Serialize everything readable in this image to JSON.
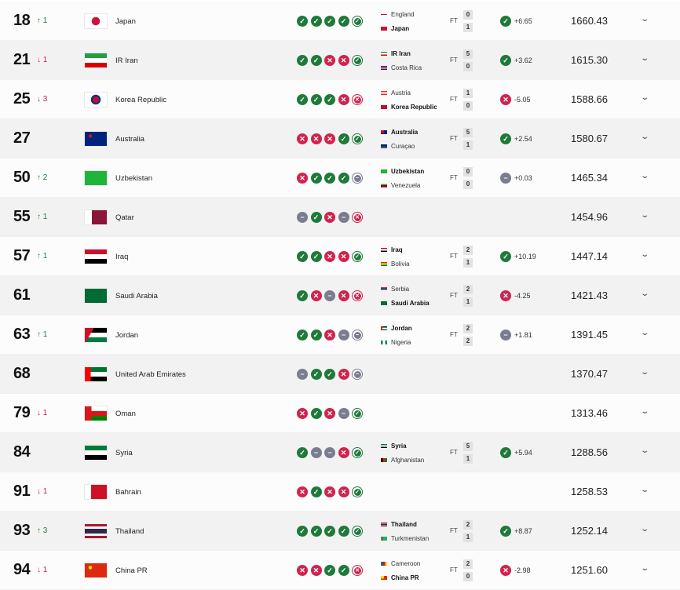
{
  "colors": {
    "win": "#1f7a3a",
    "loss": "#d0234e",
    "draw": "#7a7d8e",
    "row_alt": "#f2f2f2"
  },
  "icons": {
    "win": "check-icon",
    "loss": "x-icon",
    "draw": "minus-icon",
    "expand": "chevron-down-icon",
    "up": "arrow-up-icon",
    "down": "arrow-down-icon"
  },
  "rows": [
    {
      "rank": "18",
      "move": "↑ 1",
      "dir": "up",
      "flag": "jp",
      "name": "Japan",
      "form": [
        "W",
        "W",
        "W",
        "W",
        "W"
      ],
      "match": {
        "home": "England",
        "home_flag": "en",
        "away": "Japan",
        "away_flag": "jp",
        "bold": "away",
        "status": "FT",
        "home_score": "0",
        "away_score": "1",
        "result": "W",
        "delta": "+6.65"
      },
      "points": "1660.43"
    },
    {
      "rank": "21",
      "move": "↓ 1",
      "dir": "down",
      "flag": "ir",
      "name": "IR Iran",
      "form": [
        "W",
        "W",
        "L",
        "L",
        "W"
      ],
      "match": {
        "home": "IR Iran",
        "home_flag": "ir",
        "away": "Costa Rica",
        "away_flag": "cr",
        "bold": "home",
        "status": "FT",
        "home_score": "5",
        "away_score": "0",
        "result": "W",
        "delta": "+3.62"
      },
      "points": "1615.30"
    },
    {
      "rank": "25",
      "move": "↓ 3",
      "dir": "down",
      "flag": "kr",
      "name": "Korea Republic",
      "form": [
        "W",
        "W",
        "W",
        "L",
        "L"
      ],
      "match": {
        "home": "Austria",
        "home_flag": "at",
        "away": "Korea Republic",
        "away_flag": "kr",
        "bold": "away",
        "status": "FT",
        "home_score": "1",
        "away_score": "0",
        "result": "L",
        "delta": "-5.05"
      },
      "points": "1588.66"
    },
    {
      "rank": "27",
      "move": "",
      "dir": "",
      "flag": "au",
      "name": "Australia",
      "form": [
        "L",
        "L",
        "L",
        "W",
        "W"
      ],
      "match": {
        "home": "Australia",
        "home_flag": "au",
        "away": "Curaçao",
        "away_flag": "cw",
        "bold": "home",
        "status": "FT",
        "home_score": "5",
        "away_score": "1",
        "result": "W",
        "delta": "+2.54"
      },
      "points": "1580.67"
    },
    {
      "rank": "50",
      "move": "↑ 2",
      "dir": "up",
      "flag": "uz",
      "name": "Uzbekistan",
      "form": [
        "L",
        "W",
        "W",
        "W",
        "D"
      ],
      "match": {
        "home": "Uzbekistan",
        "home_flag": "uz",
        "away": "Venezuela",
        "away_flag": "ve",
        "bold": "home",
        "status": "FT",
        "home_score": "0",
        "away_score": "0",
        "result": "D",
        "delta": "+0.03"
      },
      "points": "1465.34"
    },
    {
      "rank": "55",
      "move": "↑ 1",
      "dir": "up",
      "flag": "qa",
      "name": "Qatar",
      "form": [
        "D",
        "W",
        "L",
        "D",
        "L"
      ],
      "match": null,
      "points": "1454.96"
    },
    {
      "rank": "57",
      "move": "↑ 1",
      "dir": "up",
      "flag": "iq",
      "name": "Iraq",
      "form": [
        "W",
        "W",
        "L",
        "L",
        "W"
      ],
      "match": {
        "home": "Iraq",
        "home_flag": "iq",
        "away": "Bolivia",
        "away_flag": "bo",
        "bold": "home",
        "status": "FT",
        "home_score": "2",
        "away_score": "1",
        "result": "W",
        "delta": "+10.19"
      },
      "points": "1447.14"
    },
    {
      "rank": "61",
      "move": "",
      "dir": "",
      "flag": "sa",
      "name": "Saudi Arabia",
      "form": [
        "W",
        "L",
        "D",
        "L",
        "L"
      ],
      "match": {
        "home": "Serbia",
        "home_flag": "rs",
        "away": "Saudi Arabia",
        "away_flag": "sa",
        "bold": "away",
        "status": "FT",
        "home_score": "2",
        "away_score": "1",
        "result": "L",
        "delta": "-4.25"
      },
      "points": "1421.43"
    },
    {
      "rank": "63",
      "move": "↑ 1",
      "dir": "up",
      "flag": "jo",
      "name": "Jordan",
      "form": [
        "W",
        "W",
        "L",
        "D",
        "D"
      ],
      "match": {
        "home": "Jordan",
        "home_flag": "jo",
        "away": "Nigeria",
        "away_flag": "ng",
        "bold": "home",
        "status": "FT",
        "home_score": "2",
        "away_score": "2",
        "result": "D",
        "delta": "+1.81"
      },
      "points": "1391.45"
    },
    {
      "rank": "68",
      "move": "",
      "dir": "",
      "flag": "ae",
      "name": "United Arab Emirates",
      "form": [
        "D",
        "W",
        "W",
        "L",
        "D"
      ],
      "match": null,
      "points": "1370.47"
    },
    {
      "rank": "79",
      "move": "↓ 1",
      "dir": "down",
      "flag": "om",
      "name": "Oman",
      "form": [
        "L",
        "W",
        "L",
        "D",
        "W"
      ],
      "match": null,
      "points": "1313.46"
    },
    {
      "rank": "84",
      "move": "",
      "dir": "",
      "flag": "sy",
      "name": "Syria",
      "form": [
        "W",
        "D",
        "D",
        "L",
        "W"
      ],
      "match": {
        "home": "Syria",
        "home_flag": "sy",
        "away": "Afghanistan",
        "away_flag": "af",
        "bold": "home",
        "status": "FT",
        "home_score": "5",
        "away_score": "1",
        "result": "W",
        "delta": "+5.94"
      },
      "points": "1288.56"
    },
    {
      "rank": "91",
      "move": "↓ 1",
      "dir": "down",
      "flag": "bh",
      "name": "Bahrain",
      "form": [
        "L",
        "W",
        "L",
        "L",
        "W"
      ],
      "match": null,
      "points": "1258.53"
    },
    {
      "rank": "93",
      "move": "↑ 3",
      "dir": "up",
      "flag": "th",
      "name": "Thailand",
      "form": [
        "W",
        "W",
        "W",
        "W",
        "W"
      ],
      "match": {
        "home": "Thailand",
        "home_flag": "th",
        "away": "Turkmenistan",
        "away_flag": "tm",
        "bold": "home",
        "status": "FT",
        "home_score": "2",
        "away_score": "1",
        "result": "W",
        "delta": "+8.87"
      },
      "points": "1252.14"
    },
    {
      "rank": "94",
      "move": "↓ 1",
      "dir": "down",
      "flag": "cn",
      "name": "China PR",
      "form": [
        "L",
        "L",
        "W",
        "W",
        "L"
      ],
      "match": {
        "home": "Cameroon",
        "home_flag": "cm",
        "away": "China PR",
        "away_flag": "cn",
        "bold": "away",
        "status": "FT",
        "home_score": "2",
        "away_score": "0",
        "result": "L",
        "delta": "-2.98"
      },
      "points": "1251.60"
    }
  ]
}
